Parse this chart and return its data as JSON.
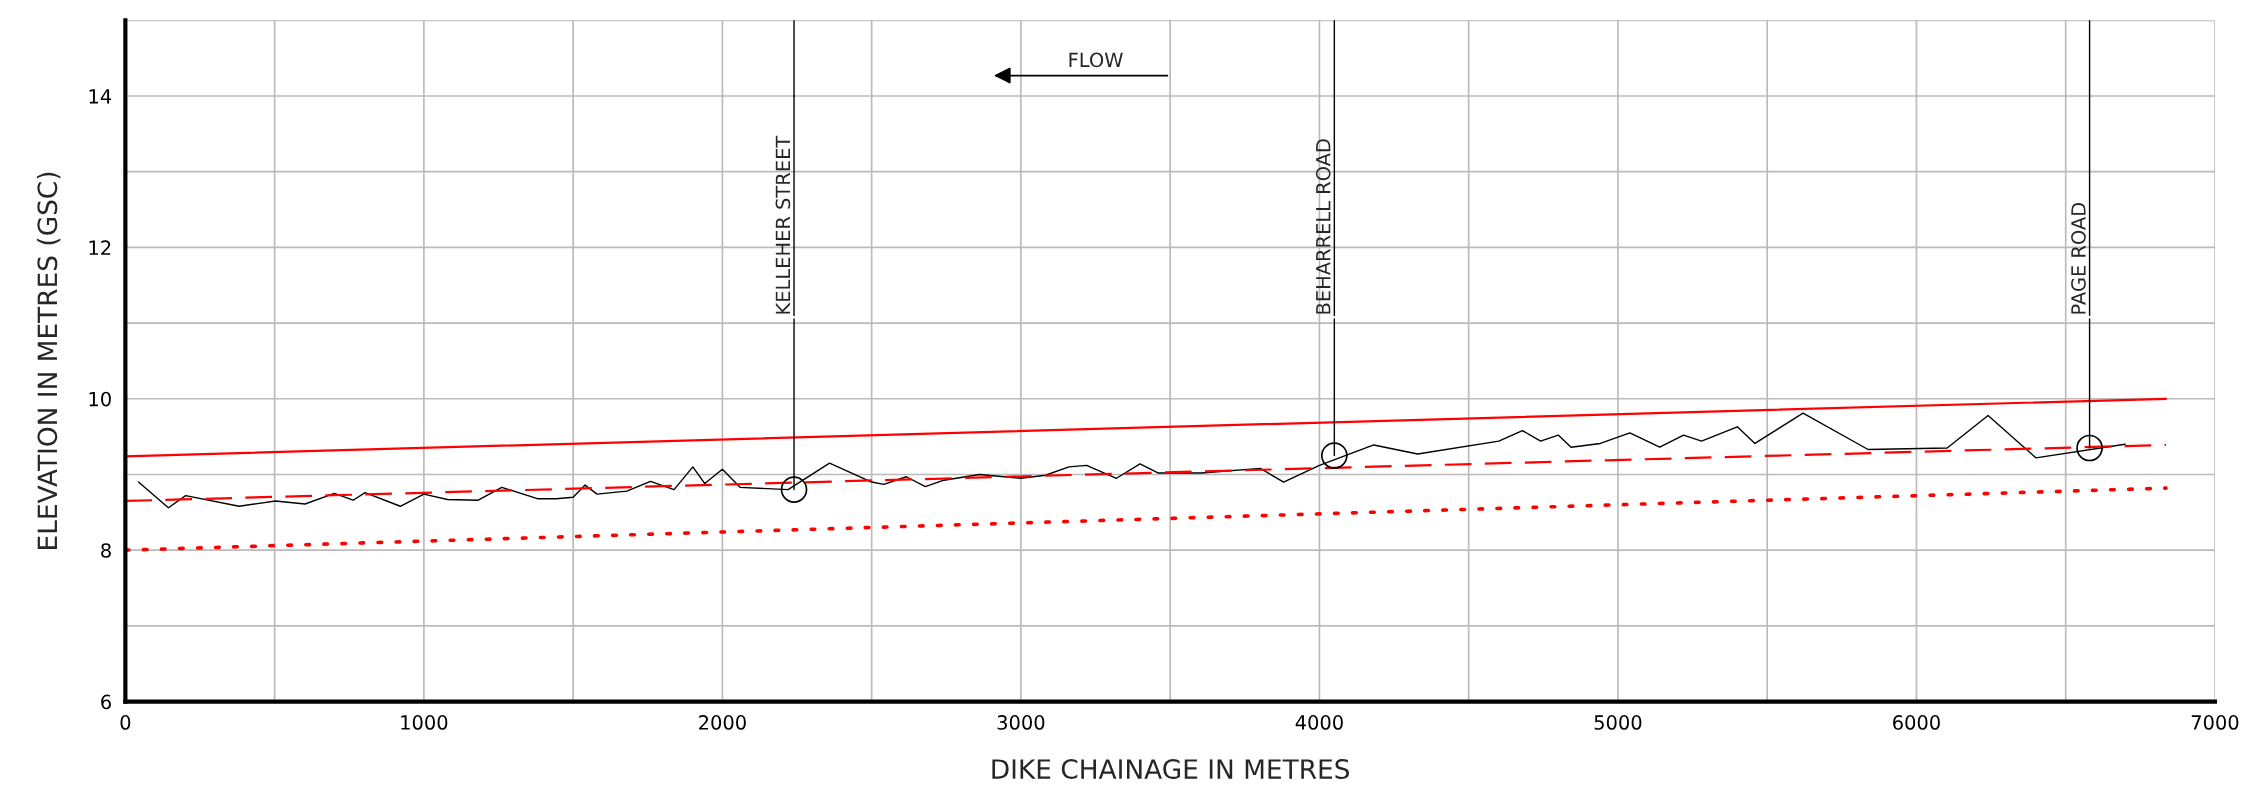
{
  "chart_data": {
    "type": "line",
    "xlabel": "DIKE CHAINAGE IN METRES",
    "ylabel": "ELEVATION IN METRES (GSC)",
    "xlim": [
      0,
      7000
    ],
    "ylim": [
      6,
      15
    ],
    "xticks": [
      0,
      {
        "value": 500,
        "label": null
      },
      1000,
      {
        "value": 1500,
        "label": null
      },
      2000,
      {
        "value": 2500,
        "label": null
      },
      3000,
      {
        "value": 3500,
        "label": null
      },
      4000,
      {
        "value": 4500,
        "label": null
      },
      5000,
      {
        "value": 5500,
        "label": null
      },
      6000,
      {
        "value": 6500,
        "label": null
      },
      7000
    ],
    "yticks": [
      6,
      {
        "value": 7,
        "label": null
      },
      8,
      {
        "value": 9,
        "label": null
      },
      10,
      {
        "value": 11,
        "label": null
      },
      12,
      {
        "value": 13,
        "label": null
      },
      14,
      {
        "value": 15,
        "label": null
      }
    ],
    "grid": true,
    "marker": "none",
    "series": [
      {
        "color": "#000000",
        "line_style": "solid",
        "x": [
          44,
          144,
          202,
          381,
          503,
          602,
          700,
          763,
          803,
          921,
          1000,
          1079,
          1182,
          1261,
          1380,
          1443,
          1500,
          1540,
          1580,
          1680,
          1759,
          1838,
          1901,
          1941,
          2000,
          2059,
          2220,
          2359,
          2500,
          2541,
          2616,
          2680,
          2737,
          2861,
          3000,
          3082,
          3161,
          3220,
          3320,
          3399,
          3459,
          3604,
          3802,
          3880,
          4000,
          4182,
          4329,
          4601,
          4680,
          4741,
          4800,
          4843,
          4941,
          5040,
          5140,
          5220,
          5280,
          5400,
          5459,
          5620,
          5838,
          6103,
          6240,
          6400,
          6699
        ],
        "values": [
          8.9,
          8.56,
          8.72,
          8.58,
          8.65,
          8.61,
          8.75,
          8.66,
          8.76,
          8.58,
          8.74,
          8.67,
          8.66,
          8.83,
          8.68,
          8.68,
          8.7,
          8.86,
          8.74,
          8.78,
          8.91,
          8.8,
          9.1,
          8.88,
          9.07,
          8.83,
          8.8,
          9.15,
          8.9,
          8.87,
          8.97,
          8.84,
          8.92,
          9.0,
          8.95,
          8.99,
          9.1,
          9.12,
          8.95,
          9.14,
          9.02,
          9.02,
          9.08,
          8.9,
          9.12,
          9.39,
          9.27,
          9.44,
          9.58,
          9.44,
          9.52,
          9.36,
          9.41,
          9.55,
          9.36,
          9.52,
          9.44,
          9.63,
          9.41,
          9.81,
          9.33,
          9.35,
          9.78,
          9.22,
          9.4
        ]
      },
      {
        "color": "#ff0000",
        "line_style": "solid",
        "x": [
          0,
          6836
        ],
        "values": [
          9.24,
          10.0
        ]
      },
      {
        "color": "#ff0000",
        "line_style": "dashed",
        "x": [
          0,
          6836
        ],
        "values": [
          8.65,
          9.39
        ]
      },
      {
        "color": "#ff0000",
        "line_style": "dotted",
        "x": [
          0,
          6836
        ],
        "values": [
          8.0,
          8.82
        ]
      }
    ],
    "annotations": [
      {
        "text": "KELLEHER STREET",
        "x": 2240,
        "y": 8.8
      },
      {
        "text": "BEHARRELL ROAD",
        "x": 4050,
        "y": 9.25
      },
      {
        "text": "PAGE ROAD",
        "x": 6580,
        "y": 9.35
      },
      "FLOW"
    ]
  }
}
